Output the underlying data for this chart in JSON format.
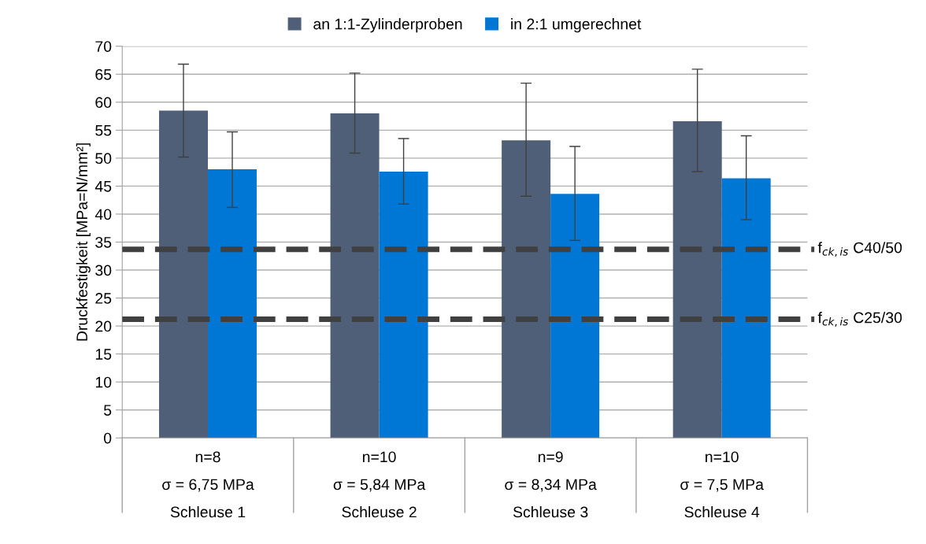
{
  "chart_data": {
    "type": "bar",
    "ylabel": "Druckfestigkeit [MPa=N/mm²]",
    "categories": [
      "n=8\nσ = 6,75 MPa\nSchleuse 1",
      "n=10\nσ = 5,84 MPa\nSchleuse 2",
      "n=9\nσ = 8,34 MPa\nSchleuse 3",
      "n=10\nσ = 7,5 MPa\nSchleuse 4"
    ],
    "series": [
      {
        "name": "an 1:1-Zylinderproben",
        "color": "#4f5f77",
        "values": [
          58.5,
          58.0,
          53.2,
          56.6
        ],
        "errors": [
          [
            50.2,
            66.8
          ],
          [
            50.9,
            65.2
          ],
          [
            43.2,
            63.4
          ],
          [
            47.6,
            65.9
          ]
        ]
      },
      {
        "name": "in 2:1 umgerechnet",
        "color": "#0077d4",
        "values": [
          48.0,
          47.6,
          43.6,
          46.4
        ],
        "errors": [
          [
            41.2,
            54.7
          ],
          [
            41.8,
            53.5
          ],
          [
            35.3,
            52.1
          ],
          [
            39.0,
            54.0
          ]
        ]
      }
    ],
    "ylim": [
      0,
      70
    ],
    "yticks": [
      0,
      5,
      10,
      15,
      20,
      25,
      30,
      35,
      40,
      45,
      50,
      55,
      60,
      65,
      70
    ],
    "ref_lines": [
      {
        "axis": "y",
        "value": 33.7,
        "label": "f$_{ck,is}$ C40/50",
        "color": "#404040",
        "line_style": "dashed"
      },
      {
        "axis": "y",
        "value": 21.2,
        "label": "f$_{ck,is}$ C25/30",
        "color": "#404040",
        "line_style": "dashed"
      }
    ],
    "grid": "y",
    "legend": "top"
  }
}
